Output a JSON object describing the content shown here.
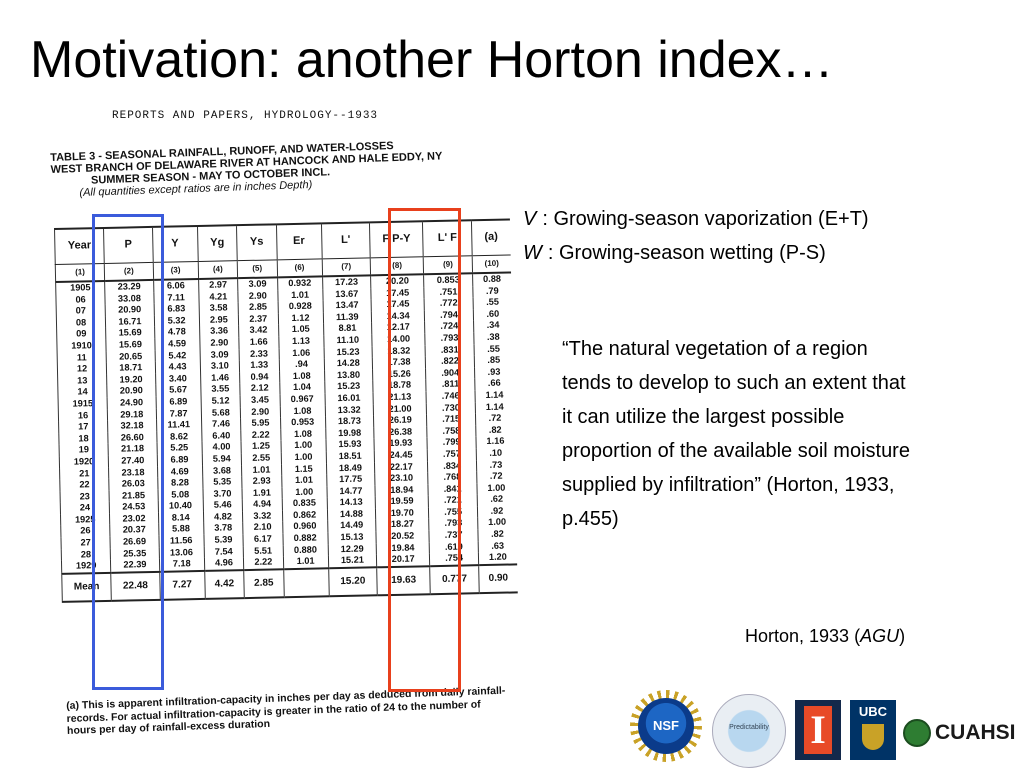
{
  "title": "Motivation: another Horton index…",
  "scan": {
    "header": "REPORTS AND PAPERS, HYDROLOGY--1933",
    "caption_lines": [
      "TABLE 3 - SEASONAL RAINFALL, RUNOFF, AND WATER-LOSSES",
      "WEST BRANCH OF DELAWARE RIVER AT HANCOCK AND HALE EDDY, NY",
      "SUMMER SEASON - MAY TO OCTOBER INCL.",
      "(All quantities except ratios are in inches Depth)"
    ],
    "columns": [
      "Year",
      "P",
      "Y",
      "Yg",
      "Ys",
      "Er",
      "L'",
      "F P-Y",
      "L' F",
      "(a)"
    ],
    "column_numbers": [
      "(1)",
      "(2)",
      "(3)",
      "(4)",
      "(5)",
      "(6)",
      "(7)",
      "(8)",
      "(9)",
      "(10)"
    ],
    "rows": [
      [
        "1905",
        "23.29",
        "6.06",
        "2.97",
        "3.09",
        "0.932",
        "17.23",
        "20.20",
        "0.853",
        "0.88"
      ],
      [
        "06",
        "33.08",
        "7.11",
        "4.21",
        "2.90",
        "1.01",
        "13.67",
        "17.45",
        ".751",
        ".79"
      ],
      [
        "07",
        "20.90",
        "6.83",
        "3.58",
        "2.85",
        "0.928",
        "13.47",
        "17.45",
        ".772",
        ".55"
      ],
      [
        "08",
        "16.71",
        "5.32",
        "2.95",
        "2.37",
        "1.12",
        "11.39",
        "14.34",
        ".794",
        ".60"
      ],
      [
        "09",
        "15.69",
        "4.78",
        "3.36",
        "3.42",
        "1.05",
        "8.81",
        "12.17",
        ".724",
        ".34"
      ],
      [
        "1910",
        "15.69",
        "4.59",
        "2.90",
        "1.66",
        "1.13",
        "11.10",
        "14.00",
        ".793",
        ".38"
      ],
      [
        "11",
        "20.65",
        "5.42",
        "3.09",
        "2.33",
        "1.06",
        "15.23",
        "18.32",
        ".831",
        ".55"
      ],
      [
        "12",
        "18.71",
        "4.43",
        "3.10",
        "1.33",
        ".94",
        "14.28",
        "17.38",
        ".822",
        ".85"
      ],
      [
        "13",
        "19.20",
        "3.40",
        "1.46",
        "0.94",
        "1.08",
        "13.80",
        "15.26",
        ".904",
        ".93"
      ],
      [
        "14",
        "20.90",
        "5.67",
        "3.55",
        "2.12",
        "1.04",
        "15.23",
        "18.78",
        ".811",
        ".66"
      ],
      [
        "1915",
        "24.90",
        "6.89",
        "5.12",
        "3.45",
        "0.967",
        "16.01",
        "21.13",
        ".746",
        "1.14"
      ],
      [
        "16",
        "29.18",
        "7.87",
        "5.68",
        "2.90",
        "1.08",
        "13.32",
        "21.00",
        ".730",
        "1.14"
      ],
      [
        "17",
        "32.18",
        "11.41",
        "7.46",
        "5.95",
        "0.953",
        "18.73",
        "26.19",
        ".715",
        ".72"
      ],
      [
        "18",
        "26.60",
        "8.62",
        "6.40",
        "2.22",
        "1.08",
        "19.98",
        "26.38",
        ".758",
        ".82"
      ],
      [
        "19",
        "21.18",
        "5.25",
        "4.00",
        "1.25",
        "1.00",
        "15.93",
        "19.93",
        ".799",
        "1.16"
      ],
      [
        "1920",
        "27.40",
        "6.89",
        "5.94",
        "2.55",
        "1.00",
        "18.51",
        "24.45",
        ".757",
        ".10"
      ],
      [
        "21",
        "23.18",
        "4.69",
        "3.68",
        "1.01",
        "1.15",
        "18.49",
        "22.17",
        ".834",
        ".73"
      ],
      [
        "22",
        "26.03",
        "8.28",
        "5.35",
        "2.93",
        "1.01",
        "17.75",
        "23.10",
        ".768",
        ".72"
      ],
      [
        "23",
        "21.85",
        "5.08",
        "3.70",
        "1.91",
        "1.00",
        "14.77",
        "18.94",
        ".841",
        "1.00"
      ],
      [
        "24",
        "24.53",
        "10.40",
        "5.46",
        "4.94",
        "0.835",
        "14.13",
        "19.59",
        ".721",
        ".62"
      ],
      [
        "1925",
        "23.02",
        "8.14",
        "4.82",
        "3.32",
        "0.862",
        "14.88",
        "19.70",
        ".755",
        ".92"
      ],
      [
        "26",
        "20.37",
        "5.88",
        "3.78",
        "2.10",
        "0.960",
        "14.49",
        "18.27",
        ".793",
        "1.00"
      ],
      [
        "27",
        "26.69",
        "11.56",
        "5.39",
        "6.17",
        "0.882",
        "15.13",
        "20.52",
        ".737",
        ".82"
      ],
      [
        "28",
        "25.35",
        "13.06",
        "7.54",
        "5.51",
        "0.880",
        "12.29",
        "19.84",
        ".619",
        ".63"
      ],
      [
        "1929",
        "22.39",
        "7.18",
        "4.96",
        "2.22",
        "1.01",
        "15.21",
        "20.17",
        ".754",
        "1.20"
      ]
    ],
    "mean_row": [
      "Mean",
      "22.48",
      "7.27",
      "4.42",
      "2.85",
      "",
      "15.20",
      "19.63",
      "0.777",
      "0.90"
    ],
    "footnote": "(a) This is apparent infiltration-capacity in inches per day as deduced from daily rainfall-records. For actual infiltration-capacity is greater in the ratio of 24 to the number of hours per day of rainfall-excess duration"
  },
  "definitions": [
    {
      "symbol": "V",
      "text": ": Growing-season vaporization (E+T)"
    },
    {
      "symbol": "W",
      "text": ": Growing-season wetting (P-S)"
    }
  ],
  "quote": "“The natural vegetation of a region tends to develop to such an extent that it can utilize the largest possible proportion of the available soil moisture supplied by infiltration” (Horton, 1933, p.455)",
  "citation": {
    "prefix": "Horton, 1933 (",
    "journal": "AGU",
    "suffix": ")"
  },
  "logos": {
    "nsf": "NSF",
    "predictability": "Predictability",
    "illinois": "I",
    "ubc": "UBC",
    "cuahsi": "CUAHSI"
  },
  "colors": {
    "blue_highlight": "#3b5bdb",
    "red_highlight": "#e8401c"
  }
}
